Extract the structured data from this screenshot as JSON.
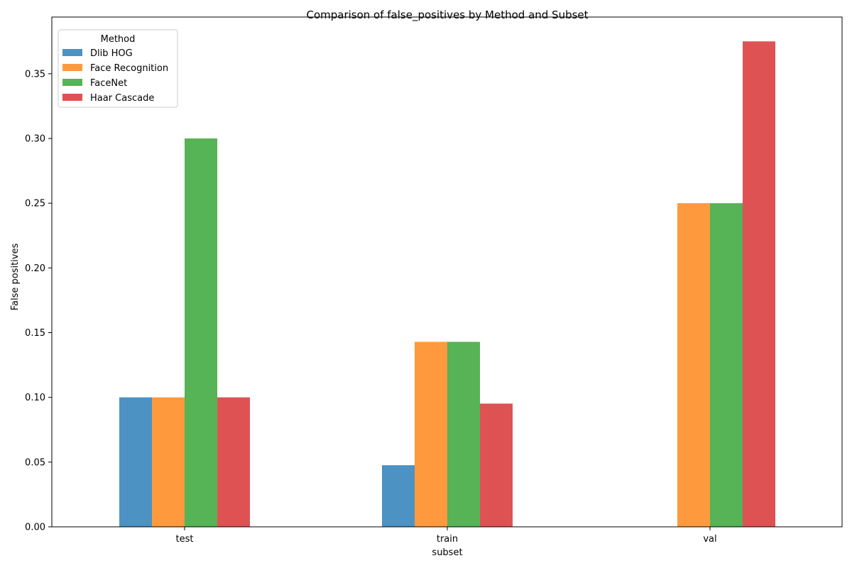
{
  "chart_data": {
    "type": "bar",
    "title": "Comparison of false_positives by Method and Subset",
    "xlabel": "subset",
    "ylabel": "False positives",
    "categories": [
      "test",
      "train",
      "val"
    ],
    "ylim": [
      0,
      0.3938
    ],
    "yticks": [
      "0.00",
      "0.05",
      "0.10",
      "0.15",
      "0.20",
      "0.25",
      "0.30",
      "0.35"
    ],
    "ytick_values": [
      0,
      0.05,
      0.1,
      0.15,
      0.2,
      0.25,
      0.3,
      0.35
    ],
    "grid": false,
    "legend": {
      "title": "Method",
      "placement": "top-left"
    },
    "series": [
      {
        "name": "Dlib HOG",
        "color": "#1f77b4",
        "values": [
          0.1,
          0.0476,
          0
        ]
      },
      {
        "name": "Face Recognition",
        "color": "#ff7f0e",
        "values": [
          0.1,
          0.1429,
          0.25
        ]
      },
      {
        "name": "FaceNet",
        "color": "#2ca02c",
        "values": [
          0.3,
          0.1429,
          0.25
        ]
      },
      {
        "name": "Haar Cascade",
        "color": "#d62728",
        "values": [
          0.1,
          0.0952,
          0.375
        ]
      }
    ]
  }
}
